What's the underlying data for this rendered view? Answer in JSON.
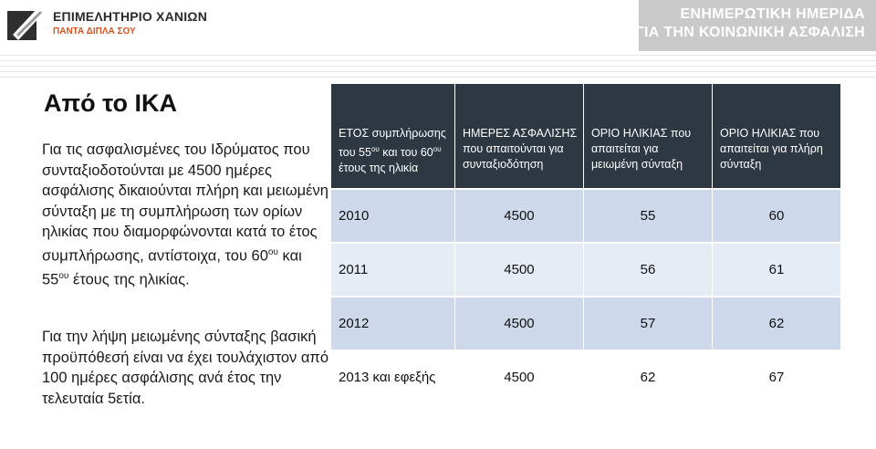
{
  "header": {
    "chamber_name": "ΕΠΙΜΕΛΗΤΗΡΙΟ ΧΑΝΙΩΝ",
    "chamber_slogan": "ΠΑΝΤΑ ΔΙΠΛΑ ΣΟΥ",
    "event_line1": "ΕΝΗΜΕΡΩΤΙΚΗ ΗΜΕΡΙΔΑ",
    "event_line2": "ΓΙΑ ΤΗΝ ΚΟΙΝΩΝΙΚΗ ΑΣΦΑΛΙΣΗ",
    "accent_color": "#c9c9c9",
    "slogan_color": "#d9531e"
  },
  "title": "Από το ΙΚΑ",
  "paragraph1": {
    "part1": "Για τις ασφαλισμένες του Ιδρύματος που συνταξιοδοτούνται με 4500 ημέρες ασφάλισης δικαιούνται πλήρη και μειωμένη σύνταξη με τη συμπλήρωση των ορίων ηλικίας που διαμορφώνονται κατά το έτος συμπλήρωσης, αντίστοιχα, του 60",
    "sup1": "ου",
    "part2": " και 55",
    "sup2": "ου",
    "part3": " έτους της ηλικίας."
  },
  "paragraph2": "Για την λήψη μειωμένης σύνταξης βασική προϋπόθεσή είναι να έχει τουλάχιστον  από 100 ημέρες ασφάλισης ανά έτος την τελευταία 5ετία.",
  "table": {
    "header_color": "#2e3843",
    "headers": {
      "col1_a": "ΕΤΟΣ συμπλήρωσης του 55",
      "col1_sup1": "ου",
      "col1_b": " και του 60",
      "col1_sup2": "ου",
      "col1_c": "  έτους της ηλικία",
      "col2": "ΗΜΕΡΕΣ ΑΣΦΑΛΙΣΗΣ που απαιτούνται για συνταξιοδότηση",
      "col3": "ΟΡΙΟ ΗΛΙΚΙΑΣ που απαιτείται για μειωμένη σύνταξη",
      "col4": "ΟΡΙΟ ΗΛΙΚΙΑΣ που απαιτείται για πλήρη σύνταξη"
    },
    "rows": [
      [
        "2010",
        "4500",
        "55",
        "60"
      ],
      [
        "2011",
        "4500",
        "56",
        "61"
      ],
      [
        "2012",
        "4500",
        "57",
        "62"
      ],
      [
        "2013 και εφεξής",
        "4500",
        "62",
        "67"
      ]
    ]
  }
}
